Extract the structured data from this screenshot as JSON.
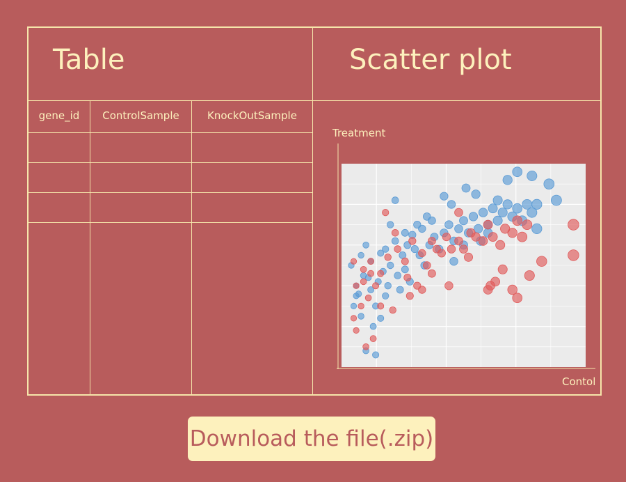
{
  "table_panel": {
    "title": "Table",
    "columns": [
      "gene_id",
      "ControlSample",
      "KnockOutSample"
    ]
  },
  "scatter_panel": {
    "title": "Scatter plot",
    "y_axis_label": "Treatment",
    "x_axis_label": "Contol"
  },
  "download_button": {
    "label": "Download the file(.zip)"
  },
  "colors": {
    "background": "#b85c5c",
    "line": "#f6e6ab",
    "text": "#fdf1bd",
    "plot_bg": "#ebebeb",
    "series_blue": "#5b9bd5",
    "series_red": "#e05a5a"
  },
  "chart_data": {
    "type": "scatter",
    "title": "",
    "xlabel": "Contol",
    "ylabel": "Treatment",
    "grid": true,
    "series": [
      {
        "color": "blue",
        "points": [
          [
            0.1,
            0.08
          ],
          [
            0.14,
            0.06
          ],
          [
            0.05,
            0.3
          ],
          [
            0.08,
            0.25
          ],
          [
            0.06,
            0.4
          ],
          [
            0.09,
            0.45
          ],
          [
            0.12,
            0.38
          ],
          [
            0.15,
            0.42
          ],
          [
            0.04,
            0.5
          ],
          [
            0.08,
            0.55
          ],
          [
            0.12,
            0.52
          ],
          [
            0.17,
            0.47
          ],
          [
            0.2,
            0.5
          ],
          [
            0.23,
            0.45
          ],
          [
            0.25,
            0.55
          ],
          [
            0.18,
            0.58
          ],
          [
            0.22,
            0.62
          ],
          [
            0.27,
            0.6
          ],
          [
            0.29,
            0.65
          ],
          [
            0.31,
            0.7
          ],
          [
            0.33,
            0.68
          ],
          [
            0.35,
            0.74
          ],
          [
            0.37,
            0.72
          ],
          [
            0.3,
            0.58
          ],
          [
            0.26,
            0.48
          ],
          [
            0.28,
            0.42
          ],
          [
            0.32,
            0.55
          ],
          [
            0.36,
            0.6
          ],
          [
            0.38,
            0.64
          ],
          [
            0.4,
            0.58
          ],
          [
            0.42,
            0.66
          ],
          [
            0.44,
            0.7
          ],
          [
            0.46,
            0.62
          ],
          [
            0.48,
            0.68
          ],
          [
            0.5,
            0.72
          ],
          [
            0.52,
            0.66
          ],
          [
            0.54,
            0.74
          ],
          [
            0.56,
            0.68
          ],
          [
            0.58,
            0.76
          ],
          [
            0.6,
            0.7
          ],
          [
            0.62,
            0.78
          ],
          [
            0.64,
            0.72
          ],
          [
            0.66,
            0.76
          ],
          [
            0.68,
            0.8
          ],
          [
            0.7,
            0.74
          ],
          [
            0.72,
            0.78
          ],
          [
            0.74,
            0.72
          ],
          [
            0.76,
            0.8
          ],
          [
            0.78,
            0.76
          ],
          [
            0.8,
            0.68
          ],
          [
            0.55,
            0.85
          ],
          [
            0.51,
            0.88
          ],
          [
            0.45,
            0.8
          ],
          [
            0.42,
            0.84
          ],
          [
            0.22,
            0.82
          ],
          [
            0.1,
            0.6
          ],
          [
            0.06,
            0.35
          ],
          [
            0.14,
            0.3
          ],
          [
            0.18,
            0.35
          ],
          [
            0.24,
            0.38
          ],
          [
            0.68,
            0.92
          ],
          [
            0.72,
            0.96
          ],
          [
            0.78,
            0.94
          ],
          [
            0.85,
            0.9
          ],
          [
            0.88,
            0.82
          ],
          [
            0.8,
            0.8
          ],
          [
            0.6,
            0.66
          ],
          [
            0.64,
            0.82
          ],
          [
            0.5,
            0.6
          ],
          [
            0.46,
            0.52
          ],
          [
            0.34,
            0.5
          ],
          [
            0.2,
            0.7
          ],
          [
            0.16,
            0.56
          ],
          [
            0.11,
            0.44
          ],
          [
            0.07,
            0.36
          ],
          [
            0.13,
            0.2
          ],
          [
            0.16,
            0.24
          ],
          [
            0.19,
            0.4
          ],
          [
            0.26,
            0.66
          ],
          [
            0.57,
            0.62
          ]
        ]
      },
      {
        "color": "red",
        "points": [
          [
            0.1,
            0.1
          ],
          [
            0.13,
            0.14
          ],
          [
            0.06,
            0.18
          ],
          [
            0.05,
            0.24
          ],
          [
            0.08,
            0.3
          ],
          [
            0.11,
            0.34
          ],
          [
            0.14,
            0.4
          ],
          [
            0.09,
            0.48
          ],
          [
            0.05,
            0.52
          ],
          [
            0.12,
            0.52
          ],
          [
            0.16,
            0.46
          ],
          [
            0.19,
            0.54
          ],
          [
            0.23,
            0.58
          ],
          [
            0.26,
            0.52
          ],
          [
            0.29,
            0.62
          ],
          [
            0.33,
            0.56
          ],
          [
            0.35,
            0.5
          ],
          [
            0.37,
            0.62
          ],
          [
            0.39,
            0.58
          ],
          [
            0.41,
            0.56
          ],
          [
            0.43,
            0.64
          ],
          [
            0.45,
            0.58
          ],
          [
            0.48,
            0.62
          ],
          [
            0.5,
            0.58
          ],
          [
            0.53,
            0.66
          ],
          [
            0.55,
            0.64
          ],
          [
            0.58,
            0.62
          ],
          [
            0.6,
            0.7
          ],
          [
            0.62,
            0.64
          ],
          [
            0.65,
            0.6
          ],
          [
            0.67,
            0.68
          ],
          [
            0.7,
            0.66
          ],
          [
            0.72,
            0.72
          ],
          [
            0.74,
            0.64
          ],
          [
            0.76,
            0.7
          ],
          [
            0.66,
            0.48
          ],
          [
            0.63,
            0.42
          ],
          [
            0.6,
            0.38
          ],
          [
            0.7,
            0.38
          ],
          [
            0.72,
            0.34
          ],
          [
            0.77,
            0.45
          ],
          [
            0.82,
            0.52
          ],
          [
            0.95,
            0.55
          ],
          [
            0.95,
            0.7
          ],
          [
            0.61,
            0.4
          ],
          [
            0.48,
            0.76
          ],
          [
            0.18,
            0.76
          ],
          [
            0.22,
            0.66
          ],
          [
            0.27,
            0.44
          ],
          [
            0.31,
            0.4
          ],
          [
            0.33,
            0.38
          ],
          [
            0.21,
            0.28
          ],
          [
            0.16,
            0.3
          ],
          [
            0.12,
            0.46
          ],
          [
            0.09,
            0.42
          ],
          [
            0.06,
            0.4
          ],
          [
            0.28,
            0.35
          ],
          [
            0.37,
            0.46
          ],
          [
            0.52,
            0.54
          ],
          [
            0.44,
            0.4
          ]
        ]
      }
    ]
  }
}
